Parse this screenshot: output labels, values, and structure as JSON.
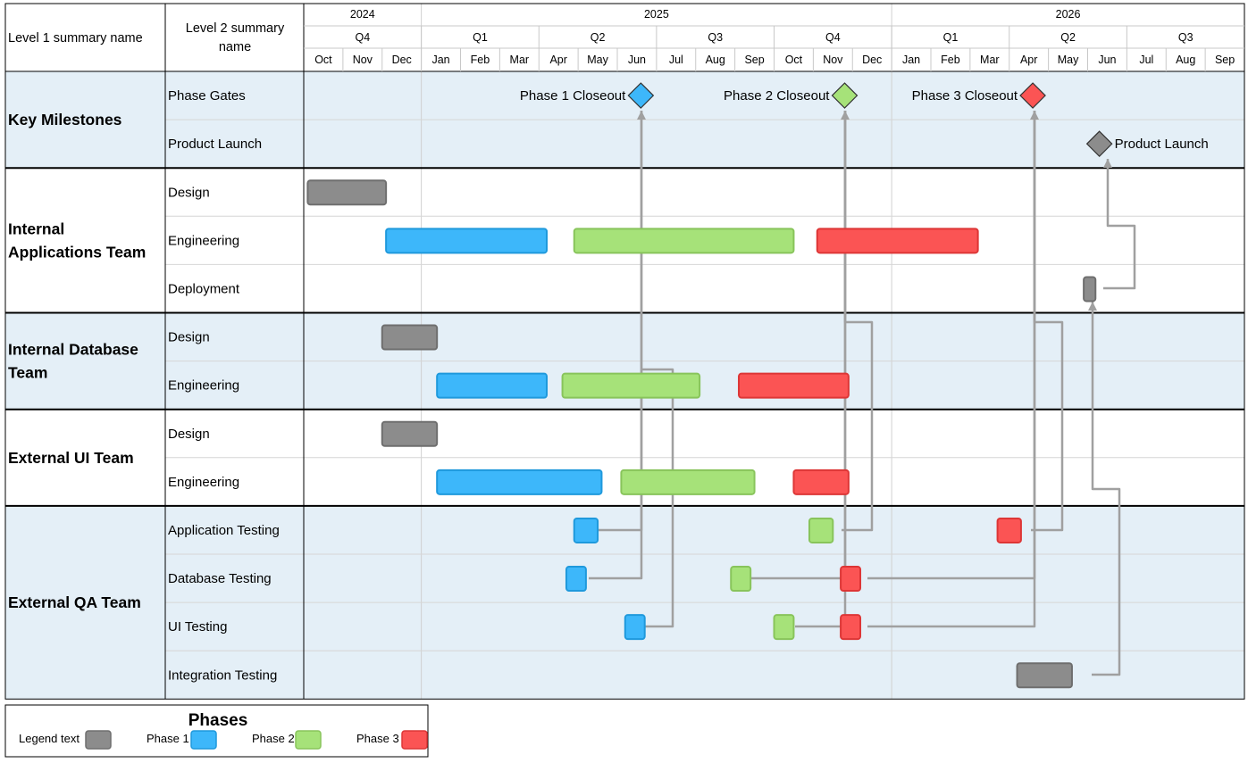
{
  "header": {
    "col1_title": "Level 1 summary name",
    "col2_title_line1": "Level 2 summary",
    "col2_title_line2": "name"
  },
  "timeline": {
    "years": [
      "2024",
      "2025",
      "2026"
    ],
    "quarters": [
      "Q4",
      "Q1",
      "Q2",
      "Q3",
      "Q4",
      "Q1",
      "Q2",
      "Q3"
    ],
    "months": [
      "Oct",
      "Nov",
      "Dec",
      "Jan",
      "Feb",
      "Mar",
      "Apr",
      "May",
      "Jun",
      "Jul",
      "Aug",
      "Sep",
      "Oct",
      "Nov",
      "Dec",
      "Jan",
      "Feb",
      "Mar",
      "Apr",
      "May",
      "Jun",
      "Jul",
      "Aug",
      "Sep"
    ]
  },
  "groups": [
    {
      "name_lines": [
        "Key Milestones"
      ],
      "shaded": true,
      "rows": [
        "Phase Gates",
        "Product Launch"
      ]
    },
    {
      "name_lines": [
        "Internal",
        "Applications Team"
      ],
      "shaded": false,
      "rows": [
        "Design",
        "Engineering",
        "Deployment"
      ]
    },
    {
      "name_lines": [
        "Internal Database",
        "Team"
      ],
      "shaded": true,
      "rows": [
        "Design",
        "Engineering"
      ]
    },
    {
      "name_lines": [
        "External UI Team"
      ],
      "shaded": false,
      "rows": [
        "Design",
        "Engineering"
      ]
    },
    {
      "name_lines": [
        "External QA Team"
      ],
      "shaded": true,
      "rows": [
        "Application Testing",
        "Database Testing",
        "UI Testing",
        "Integration Testing"
      ]
    }
  ],
  "colors": {
    "legend": "#8c8c8c",
    "phase1": "#3db7fa",
    "phase2": "#a6e279",
    "phase3": "#fb5454",
    "shade": "#e4eff7",
    "connector": "#a0a0a0"
  },
  "chart_data": {
    "type": "gantt",
    "time_unit": "month",
    "time_start": "2024-10",
    "tasks": [
      {
        "row": 2,
        "start": 0.1,
        "end": 2.1,
        "phase": "legend"
      },
      {
        "row": 3,
        "start": 2.1,
        "end": 6.2,
        "phase": "phase1"
      },
      {
        "row": 3,
        "start": 6.9,
        "end": 12.5,
        "phase": "phase2"
      },
      {
        "row": 3,
        "start": 13.1,
        "end": 17.2,
        "phase": "phase3"
      },
      {
        "row": 4,
        "start": 19.9,
        "end": 20.2,
        "phase": "legend"
      },
      {
        "row": 5,
        "start": 2.0,
        "end": 3.4,
        "phase": "legend"
      },
      {
        "row": 6,
        "start": 3.4,
        "end": 6.2,
        "phase": "phase1"
      },
      {
        "row": 6,
        "start": 6.6,
        "end": 10.1,
        "phase": "phase2"
      },
      {
        "row": 6,
        "start": 11.1,
        "end": 13.9,
        "phase": "phase3"
      },
      {
        "row": 7,
        "start": 2.0,
        "end": 3.4,
        "phase": "legend"
      },
      {
        "row": 8,
        "start": 3.4,
        "end": 7.6,
        "phase": "phase1"
      },
      {
        "row": 8,
        "start": 8.1,
        "end": 11.5,
        "phase": "phase2"
      },
      {
        "row": 8,
        "start": 12.5,
        "end": 13.9,
        "phase": "phase3"
      },
      {
        "row": 9,
        "start": 6.9,
        "end": 7.5,
        "phase": "phase1"
      },
      {
        "row": 9,
        "start": 12.9,
        "end": 13.5,
        "phase": "phase2"
      },
      {
        "row": 9,
        "start": 17.7,
        "end": 18.3,
        "phase": "phase3"
      },
      {
        "row": 10,
        "start": 6.7,
        "end": 7.2,
        "phase": "phase1"
      },
      {
        "row": 10,
        "start": 10.9,
        "end": 11.4,
        "phase": "phase2"
      },
      {
        "row": 10,
        "start": 13.7,
        "end": 14.2,
        "phase": "phase3"
      },
      {
        "row": 11,
        "start": 8.2,
        "end": 8.7,
        "phase": "phase1"
      },
      {
        "row": 11,
        "start": 12.0,
        "end": 12.5,
        "phase": "phase2"
      },
      {
        "row": 11,
        "start": 13.7,
        "end": 14.2,
        "phase": "phase3"
      },
      {
        "row": 12,
        "start": 18.2,
        "end": 19.6,
        "phase": "legend"
      }
    ],
    "milestones": [
      {
        "row": 0,
        "at": 8.6,
        "label": "Phase 1 Closeout",
        "label_side": "left",
        "phase": "phase1"
      },
      {
        "row": 0,
        "at": 13.8,
        "label": "Phase 2 Closeout",
        "label_side": "left",
        "phase": "phase2"
      },
      {
        "row": 0,
        "at": 18.6,
        "label": "Phase 3 Closeout",
        "label_side": "left",
        "phase": "phase3"
      },
      {
        "row": 1,
        "at": 20.3,
        "label": "Product Launch",
        "label_side": "right",
        "phase": "legend"
      }
    ],
    "legend_title": "Phases",
    "legend": [
      {
        "label": "Legend text",
        "phase": "legend"
      },
      {
        "label": "Phase 1",
        "phase": "phase1"
      },
      {
        "label": "Phase 2",
        "phase": "phase2"
      },
      {
        "label": "Phase 3",
        "phase": "phase3"
      }
    ]
  }
}
